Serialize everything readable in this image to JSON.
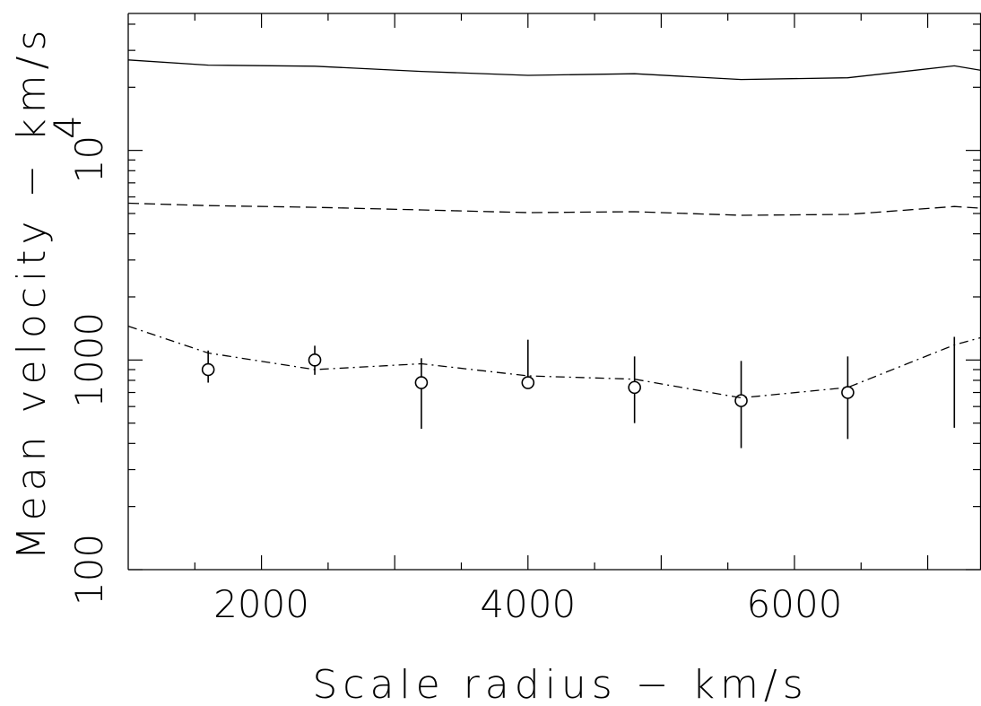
{
  "chart_data": {
    "type": "line",
    "title": "",
    "xlabel": "Scale radius − km/s",
    "ylabel": "Mean velocity − km/s",
    "x_scale": "linear",
    "y_scale": "log",
    "xlim": [
      1000,
      7400
    ],
    "ylim": [
      100,
      45000
    ],
    "x_ticks": [
      {
        "value": 2000,
        "label": "2000"
      },
      {
        "value": 4000,
        "label": "4000"
      },
      {
        "value": 6000,
        "label": "6000"
      }
    ],
    "y_ticks": [
      {
        "value": 100,
        "label": "100"
      },
      {
        "value": 1000,
        "label": "1000"
      }
    ],
    "y_tick_10k": {
      "base": "10",
      "exponent": "4"
    },
    "grid": false,
    "legend": "none",
    "series": [
      {
        "style": "solid",
        "x": [
          1000,
          1600,
          2400,
          3200,
          4000,
          4800,
          5600,
          6400,
          7200,
          7400
        ],
        "y": [
          27000,
          25500,
          25200,
          23800,
          22800,
          23200,
          21800,
          22200,
          25300,
          24100
        ]
      },
      {
        "style": "dashed",
        "x": [
          1000,
          1600,
          2400,
          3200,
          4000,
          4800,
          5600,
          6400,
          7200,
          7400
        ],
        "y": [
          5600,
          5450,
          5350,
          5200,
          5050,
          5100,
          4900,
          4950,
          5400,
          5300
        ]
      },
      {
        "style": "dash-dot",
        "x": [
          1000,
          1600,
          2400,
          3200,
          4000,
          4800,
          5600,
          6400,
          7200,
          7400
        ],
        "y": [
          1450,
          1080,
          900,
          960,
          840,
          810,
          660,
          740,
          1180,
          1280
        ]
      },
      {
        "style": "markers",
        "x": [
          1600,
          2400,
          3200,
          4000,
          4800,
          5600,
          6400
        ],
        "y": [
          900,
          1000,
          780,
          780,
          740,
          640,
          700
        ],
        "yerr_low": [
          780,
          850,
          470,
          780,
          500,
          380,
          420
        ],
        "yerr_high": [
          1110,
          1170,
          1020,
          1250,
          1040,
          990,
          1040
        ]
      },
      {
        "style": "errorbar-only",
        "x": [
          7200
        ],
        "y": [
          980
        ],
        "yerr_low": [
          475
        ],
        "yerr_high": [
          1290
        ]
      }
    ]
  }
}
